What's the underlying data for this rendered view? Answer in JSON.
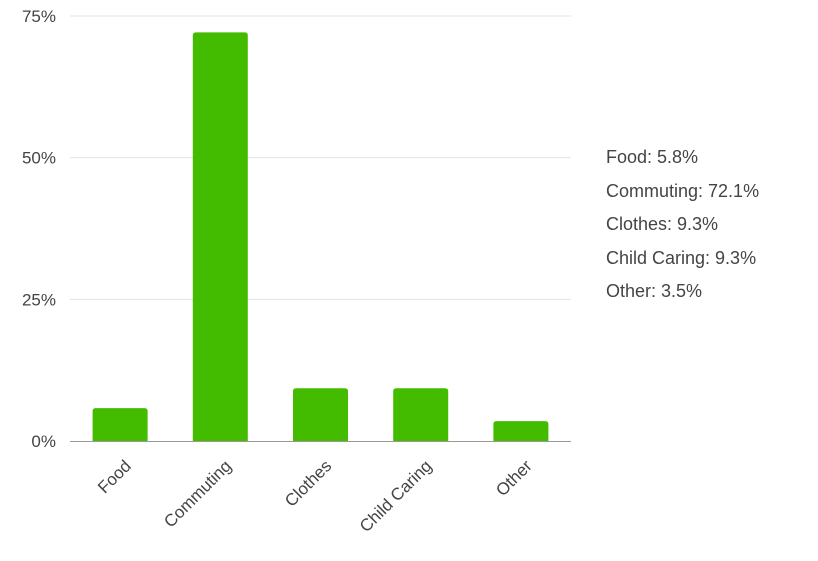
{
  "chart_data": {
    "type": "bar",
    "categories": [
      "Food",
      "Commuting",
      "Clothes",
      "Child Caring",
      "Other"
    ],
    "values": [
      5.8,
      72.1,
      9.3,
      9.3,
      3.5
    ],
    "ylim": [
      0,
      75
    ],
    "yticks": [
      0,
      25,
      50,
      75
    ],
    "ytick_labels": [
      "0%",
      "25%",
      "50%",
      "75%"
    ],
    "bar_color": "#43BC00",
    "grid": true,
    "legend_position": "right",
    "title": "",
    "xlabel": "",
    "ylabel": ""
  },
  "legend": {
    "items": [
      "Food: 5.8%",
      "Commuting: 72.1%",
      "Clothes: 9.3%",
      "Child Caring: 9.3%",
      "Other: 3.5%"
    ]
  }
}
